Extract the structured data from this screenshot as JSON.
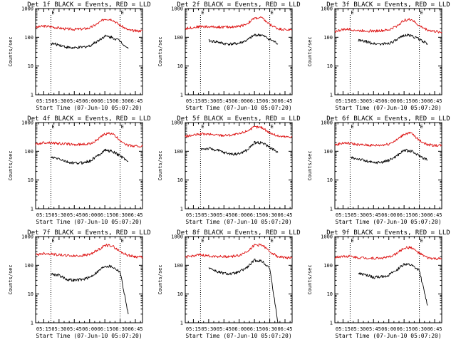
{
  "figure": {
    "colors": {
      "events": "#000000",
      "lld": "#dd1111"
    },
    "yscale": "log",
    "ylim": [
      1,
      1000
    ],
    "ytick_labels": [
      "1",
      "10",
      "100",
      "1000"
    ],
    "ylabel": "Counts/sec",
    "xlabel": "Start Time (07-Jun-10 05:07:20)",
    "xtick_labels": [
      "05:15",
      "05:30",
      "05:45",
      "06:00",
      "06:15",
      "06:30",
      "06:45"
    ],
    "xlim_minutes": [
      "05:07",
      "06:52"
    ],
    "marker_labels": [
      "E",
      "E"
    ],
    "marker_times": [
      "05:22",
      "06:30"
    ],
    "grid": false
  },
  "chart_data": [
    {
      "type": "line",
      "title": "Det 1f BLACK = Events, RED = LLD",
      "x": [
        "05:07",
        "05:15",
        "05:22",
        "05:30",
        "05:38",
        "05:45",
        "05:53",
        "06:00",
        "06:08",
        "06:15",
        "06:22",
        "06:30",
        "06:38",
        "06:45",
        "06:52"
      ],
      "series": [
        {
          "values": [
            220,
            245,
            235,
            210,
            195,
            190,
            195,
            210,
            300,
            440,
            420,
            260,
            180,
            165,
            170
          ]
        },
        {
          "values": [
            null,
            null,
            60,
            55,
            45,
            42,
            45,
            50,
            75,
            110,
            100,
            75,
            40,
            null,
            null
          ]
        }
      ]
    },
    {
      "type": "line",
      "title": "Det 2f BLACK = Events, RED = LLD",
      "x": [
        "05:07",
        "05:15",
        "05:22",
        "05:30",
        "05:38",
        "05:45",
        "05:53",
        "06:00",
        "06:08",
        "06:15",
        "06:22",
        "06:30",
        "06:38",
        "06:45",
        "06:52"
      ],
      "series": [
        {
          "values": [
            200,
            220,
            240,
            230,
            230,
            225,
            230,
            240,
            300,
            460,
            480,
            280,
            200,
            185,
            180
          ]
        },
        {
          "values": [
            null,
            null,
            null,
            75,
            70,
            60,
            58,
            62,
            80,
            120,
            120,
            85,
            60,
            null,
            null
          ]
        }
      ]
    },
    {
      "type": "line",
      "title": "Det 3f BLACK = Events, RED = LLD",
      "x": [
        "05:07",
        "05:15",
        "05:22",
        "05:30",
        "05:38",
        "05:45",
        "05:53",
        "06:00",
        "06:08",
        "06:15",
        "06:22",
        "06:30",
        "06:38",
        "06:45",
        "06:52"
      ],
      "series": [
        {
          "values": [
            160,
            185,
            190,
            170,
            170,
            165,
            170,
            180,
            250,
            390,
            420,
            250,
            180,
            160,
            150
          ]
        },
        {
          "values": [
            null,
            null,
            null,
            78,
            70,
            60,
            58,
            62,
            80,
            120,
            115,
            85,
            60,
            null,
            null
          ]
        }
      ]
    },
    {
      "type": "line",
      "title": "Det 4f BLACK = Events, RED = LLD",
      "x": [
        "05:07",
        "05:15",
        "05:22",
        "05:30",
        "05:38",
        "05:45",
        "05:53",
        "06:00",
        "06:08",
        "06:15",
        "06:22",
        "06:30",
        "06:38",
        "06:45",
        "06:52"
      ],
      "series": [
        {
          "values": [
            175,
            200,
            200,
            185,
            180,
            170,
            175,
            180,
            260,
            400,
            420,
            240,
            160,
            150,
            150
          ]
        },
        {
          "values": [
            null,
            null,
            60,
            55,
            42,
            38,
            40,
            45,
            70,
            110,
            100,
            70,
            45,
            null,
            null
          ]
        }
      ]
    },
    {
      "type": "line",
      "title": "Det 5f BLACK = Events, RED = LLD",
      "x": [
        "05:07",
        "05:15",
        "05:22",
        "05:30",
        "05:38",
        "05:45",
        "05:53",
        "06:00",
        "06:08",
        "06:15",
        "06:22",
        "06:30",
        "06:38",
        "06:45",
        "06:52"
      ],
      "series": [
        {
          "values": [
            330,
            360,
            400,
            390,
            370,
            360,
            370,
            400,
            520,
            700,
            680,
            440,
            340,
            320,
            320
          ]
        },
        {
          "values": [
            null,
            null,
            120,
            125,
            110,
            90,
            80,
            82,
            110,
            200,
            200,
            140,
            90,
            null,
            null
          ]
        }
      ]
    },
    {
      "type": "line",
      "title": "Det 6f BLACK = Events, RED = LLD",
      "x": [
        "05:07",
        "05:15",
        "05:22",
        "05:30",
        "05:38",
        "05:45",
        "05:53",
        "06:00",
        "06:08",
        "06:15",
        "06:22",
        "06:30",
        "06:38",
        "06:45",
        "06:52"
      ],
      "series": [
        {
          "values": [
            165,
            195,
            190,
            170,
            165,
            160,
            165,
            180,
            250,
            400,
            430,
            240,
            170,
            160,
            165
          ]
        },
        {
          "values": [
            null,
            null,
            60,
            55,
            45,
            40,
            42,
            48,
            70,
            110,
            100,
            70,
            50,
            null,
            null
          ]
        }
      ]
    },
    {
      "type": "line",
      "title": "Det 7f BLACK = Events, RED = LLD",
      "x": [
        "05:07",
        "05:15",
        "05:22",
        "05:30",
        "05:38",
        "05:45",
        "05:53",
        "06:00",
        "06:08",
        "06:15",
        "06:22",
        "06:30",
        "06:38",
        "06:45",
        "06:52"
      ],
      "series": [
        {
          "values": [
            230,
            260,
            250,
            230,
            220,
            210,
            220,
            240,
            330,
            500,
            480,
            300,
            220,
            200,
            190
          ]
        },
        {
          "values": [
            null,
            null,
            50,
            45,
            32,
            30,
            32,
            38,
            60,
            95,
            90,
            60,
            2,
            null,
            null
          ]
        }
      ]
    },
    {
      "type": "line",
      "title": "Det 8f BLACK = Events, RED = LLD",
      "x": [
        "05:07",
        "05:15",
        "05:22",
        "05:30",
        "05:38",
        "05:45",
        "05:53",
        "06:00",
        "06:08",
        "06:15",
        "06:22",
        "06:30",
        "06:38",
        "06:45",
        "06:52"
      ],
      "series": [
        {
          "values": [
            190,
            215,
            230,
            210,
            205,
            200,
            205,
            220,
            310,
            500,
            520,
            300,
            200,
            185,
            180
          ]
        },
        {
          "values": [
            null,
            null,
            null,
            85,
            60,
            52,
            50,
            58,
            85,
            150,
            140,
            80,
            1,
            null,
            null
          ]
        }
      ]
    },
    {
      "type": "line",
      "title": "Det 9f BLACK = Events, RED = LLD",
      "x": [
        "05:07",
        "05:15",
        "05:22",
        "05:30",
        "05:38",
        "05:45",
        "05:53",
        "06:00",
        "06:08",
        "06:15",
        "06:22",
        "06:30",
        "06:38",
        "06:45",
        "06:52"
      ],
      "series": [
        {
          "values": [
            185,
            210,
            205,
            185,
            180,
            175,
            180,
            190,
            260,
            400,
            420,
            260,
            180,
            170,
            165
          ]
        },
        {
          "values": [
            null,
            null,
            null,
            52,
            45,
            38,
            40,
            45,
            70,
            110,
            100,
            65,
            4,
            null,
            null
          ]
        }
      ]
    }
  ]
}
